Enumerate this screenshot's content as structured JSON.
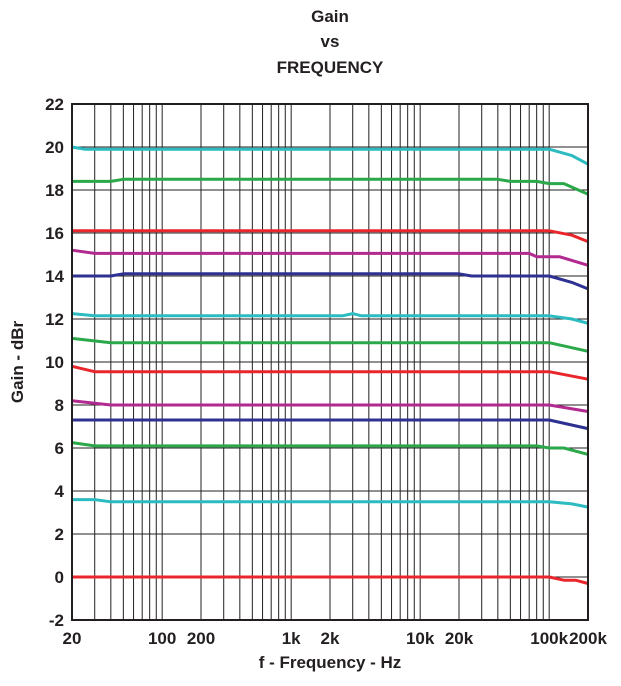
{
  "chart_data": {
    "type": "line",
    "title": [
      "Gain",
      "vs",
      "FREQUENCY"
    ],
    "xlabel": "f - Frequency - Hz",
    "ylabel": "Gain - dBr",
    "x_scale": "log",
    "xlim": [
      20,
      200000
    ],
    "ylim": [
      -2,
      22
    ],
    "grid": true,
    "legend": "none",
    "x_ticks": [
      {
        "value": 20,
        "label": "20"
      },
      {
        "value": 100,
        "label": "100"
      },
      {
        "value": 200,
        "label": "200"
      },
      {
        "value": 1000,
        "label": "1k"
      },
      {
        "value": 2000,
        "label": "2k"
      },
      {
        "value": 10000,
        "label": "10k"
      },
      {
        "value": 20000,
        "label": "20k"
      },
      {
        "value": 100000,
        "label": "100k"
      },
      {
        "value": 200000,
        "label": "200k"
      }
    ],
    "y_ticks": [
      -2,
      0,
      2,
      4,
      6,
      8,
      10,
      12,
      14,
      16,
      18,
      20,
      22
    ],
    "series": [
      {
        "color": "#2bbbc0",
        "points": [
          [
            20,
            20.0
          ],
          [
            25,
            19.9
          ],
          [
            100000,
            19.9
          ],
          [
            150000,
            19.6
          ],
          [
            200000,
            19.2
          ]
        ]
      },
      {
        "color": "#2aa84a",
        "points": [
          [
            20,
            18.4
          ],
          [
            40,
            18.4
          ],
          [
            50,
            18.5
          ],
          [
            40000,
            18.5
          ],
          [
            50000,
            18.4
          ],
          [
            80000,
            18.4
          ],
          [
            100000,
            18.3
          ],
          [
            130000,
            18.3
          ],
          [
            200000,
            17.8
          ]
        ]
      },
      {
        "color": "#e8262b",
        "points": [
          [
            20,
            16.1
          ],
          [
            100000,
            16.1
          ],
          [
            150000,
            15.9
          ],
          [
            200000,
            15.6
          ]
        ]
      },
      {
        "color": "#b22a8f",
        "points": [
          [
            20,
            15.2
          ],
          [
            30,
            15.05
          ],
          [
            70000,
            15.05
          ],
          [
            80000,
            14.9
          ],
          [
            120000,
            14.9
          ],
          [
            200000,
            14.5
          ]
        ]
      },
      {
        "color": "#2e3192",
        "points": [
          [
            20,
            14.0
          ],
          [
            40,
            14.0
          ],
          [
            50,
            14.1
          ],
          [
            20000,
            14.1
          ],
          [
            25000,
            14.0
          ],
          [
            100000,
            14.0
          ],
          [
            150000,
            13.7
          ],
          [
            200000,
            13.4
          ]
        ]
      },
      {
        "color": "#2bbbc0",
        "points": [
          [
            20,
            12.25
          ],
          [
            30,
            12.15
          ],
          [
            1000,
            12.15
          ],
          [
            2500,
            12.15
          ],
          [
            3000,
            12.25
          ],
          [
            3500,
            12.15
          ],
          [
            100000,
            12.15
          ],
          [
            150000,
            12.0
          ],
          [
            200000,
            11.8
          ]
        ]
      },
      {
        "color": "#2aa84a",
        "points": [
          [
            20,
            11.1
          ],
          [
            40,
            10.9
          ],
          [
            100000,
            10.9
          ],
          [
            200000,
            10.5
          ]
        ]
      },
      {
        "color": "#e8262b",
        "points": [
          [
            20,
            9.8
          ],
          [
            30,
            9.55
          ],
          [
            100000,
            9.55
          ],
          [
            200000,
            9.2
          ]
        ]
      },
      {
        "color": "#b22a8f",
        "points": [
          [
            20,
            8.2
          ],
          [
            40,
            8.0
          ],
          [
            100000,
            8.0
          ],
          [
            200000,
            7.7
          ]
        ]
      },
      {
        "color": "#2e3192",
        "points": [
          [
            20,
            7.3
          ],
          [
            100000,
            7.3
          ],
          [
            200000,
            6.9
          ]
        ]
      },
      {
        "color": "#2aa84a",
        "points": [
          [
            20,
            6.25
          ],
          [
            30,
            6.1
          ],
          [
            80000,
            6.1
          ],
          [
            100000,
            6.0
          ],
          [
            130000,
            6.0
          ],
          [
            200000,
            5.7
          ]
        ]
      },
      {
        "color": "#2bbbc0",
        "points": [
          [
            20,
            3.6
          ],
          [
            30,
            3.6
          ],
          [
            40,
            3.5
          ],
          [
            100000,
            3.5
          ],
          [
            150000,
            3.4
          ],
          [
            200000,
            3.25
          ]
        ]
      },
      {
        "color": "#e8262b",
        "points": [
          [
            20,
            0.0
          ],
          [
            100000,
            0.0
          ],
          [
            130000,
            -0.15
          ],
          [
            160000,
            -0.15
          ],
          [
            200000,
            -0.3
          ]
        ]
      }
    ]
  }
}
